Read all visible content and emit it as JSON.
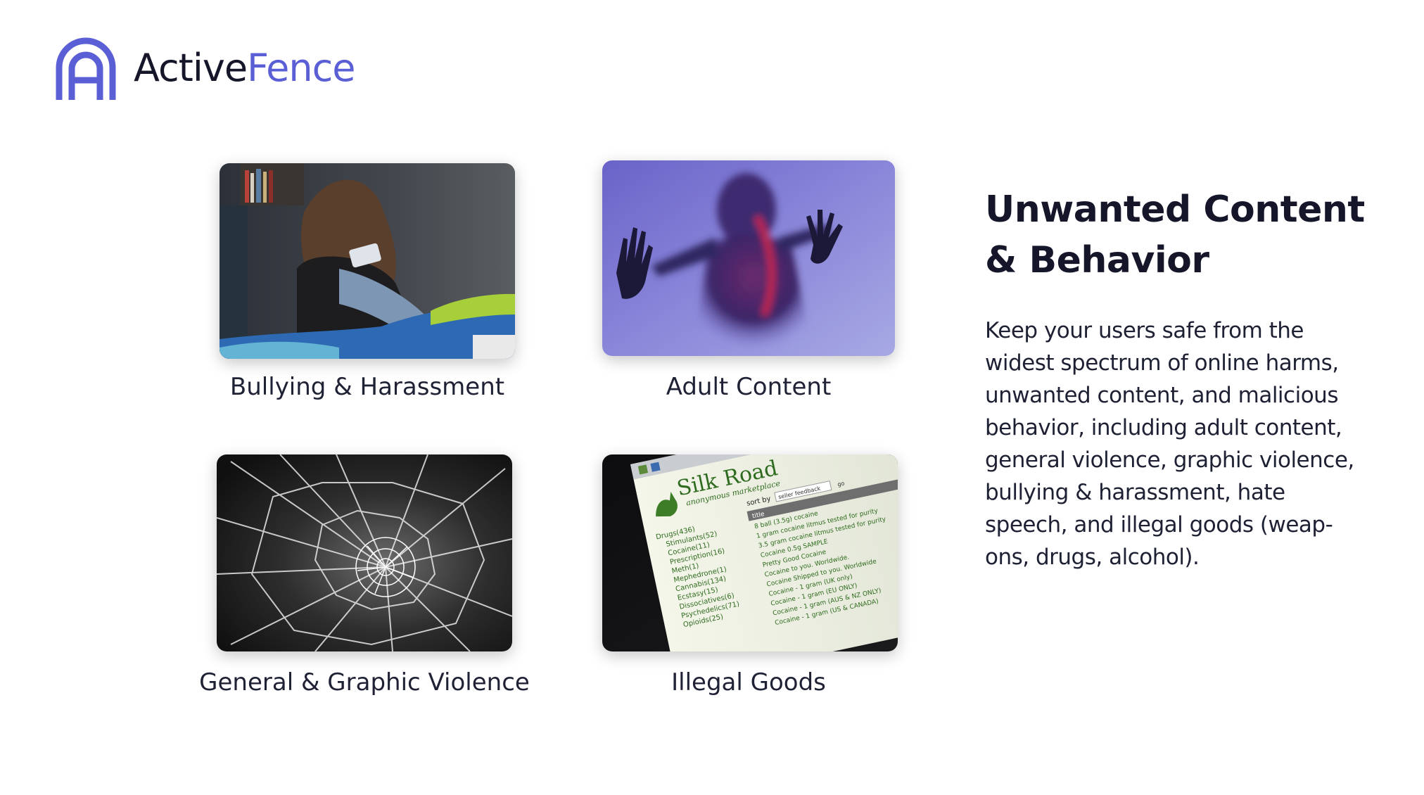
{
  "brand": {
    "name_part1": "Active",
    "name_part2": "Fence",
    "accent_color": "#5b5fd6"
  },
  "cards": [
    {
      "caption": "Bullying & Harassment"
    },
    {
      "caption": "Adult Content"
    },
    {
      "caption": "General & Graphic Violence"
    },
    {
      "caption": "Illegal Goods"
    }
  ],
  "silk_road": {
    "title": "Silk Road",
    "subtitle": "anonymous marketplace",
    "sort_label": "sort by",
    "sort_value": "seller feedback",
    "go": "go",
    "column": "title",
    "categories": [
      "Drugs(436)",
      "Stimulants(52)",
      "Cocaine(11)",
      "Prescription(16)",
      "Meth(1)",
      "Mephedrone(1)",
      "Cannabis(134)",
      "Ecstasy(15)",
      "Dissociatives(6)",
      "Psychedelics(71)",
      "Opioids(25)"
    ],
    "listings": [
      "8 ball (3.5g) cocaine",
      "1 gram cocaine litmus tested for purity",
      "3.5 gram cocaine litmus tested for purity",
      "Cocaine 0.5g SAMPLE",
      "Pretty Good Cocaine",
      "Cocaine to you. Worldwide.",
      "Cocaine Shipped to you. Worldwide",
      "Cocaine - 1 gram (UK only)",
      "Cocaine - 1 gram (EU ONLY)",
      "Cocaine - 1 gram (AUS & NZ ONLY)",
      "Cocaine - 1 gram (US & CANADA)"
    ]
  },
  "info": {
    "heading_line1": "Unwanted Content",
    "heading_line2": "& Behavior",
    "body_lines": [
      "Keep your users safe from the",
      "widest spectrum of online harms,",
      "unwanted content, and malicious",
      "behavior, including adult content,",
      "general violence, graphic violence,",
      "bullying & harassment, hate",
      "speech, and illegal goods (weap-",
      "ons, drugs, alcohol)."
    ]
  }
}
